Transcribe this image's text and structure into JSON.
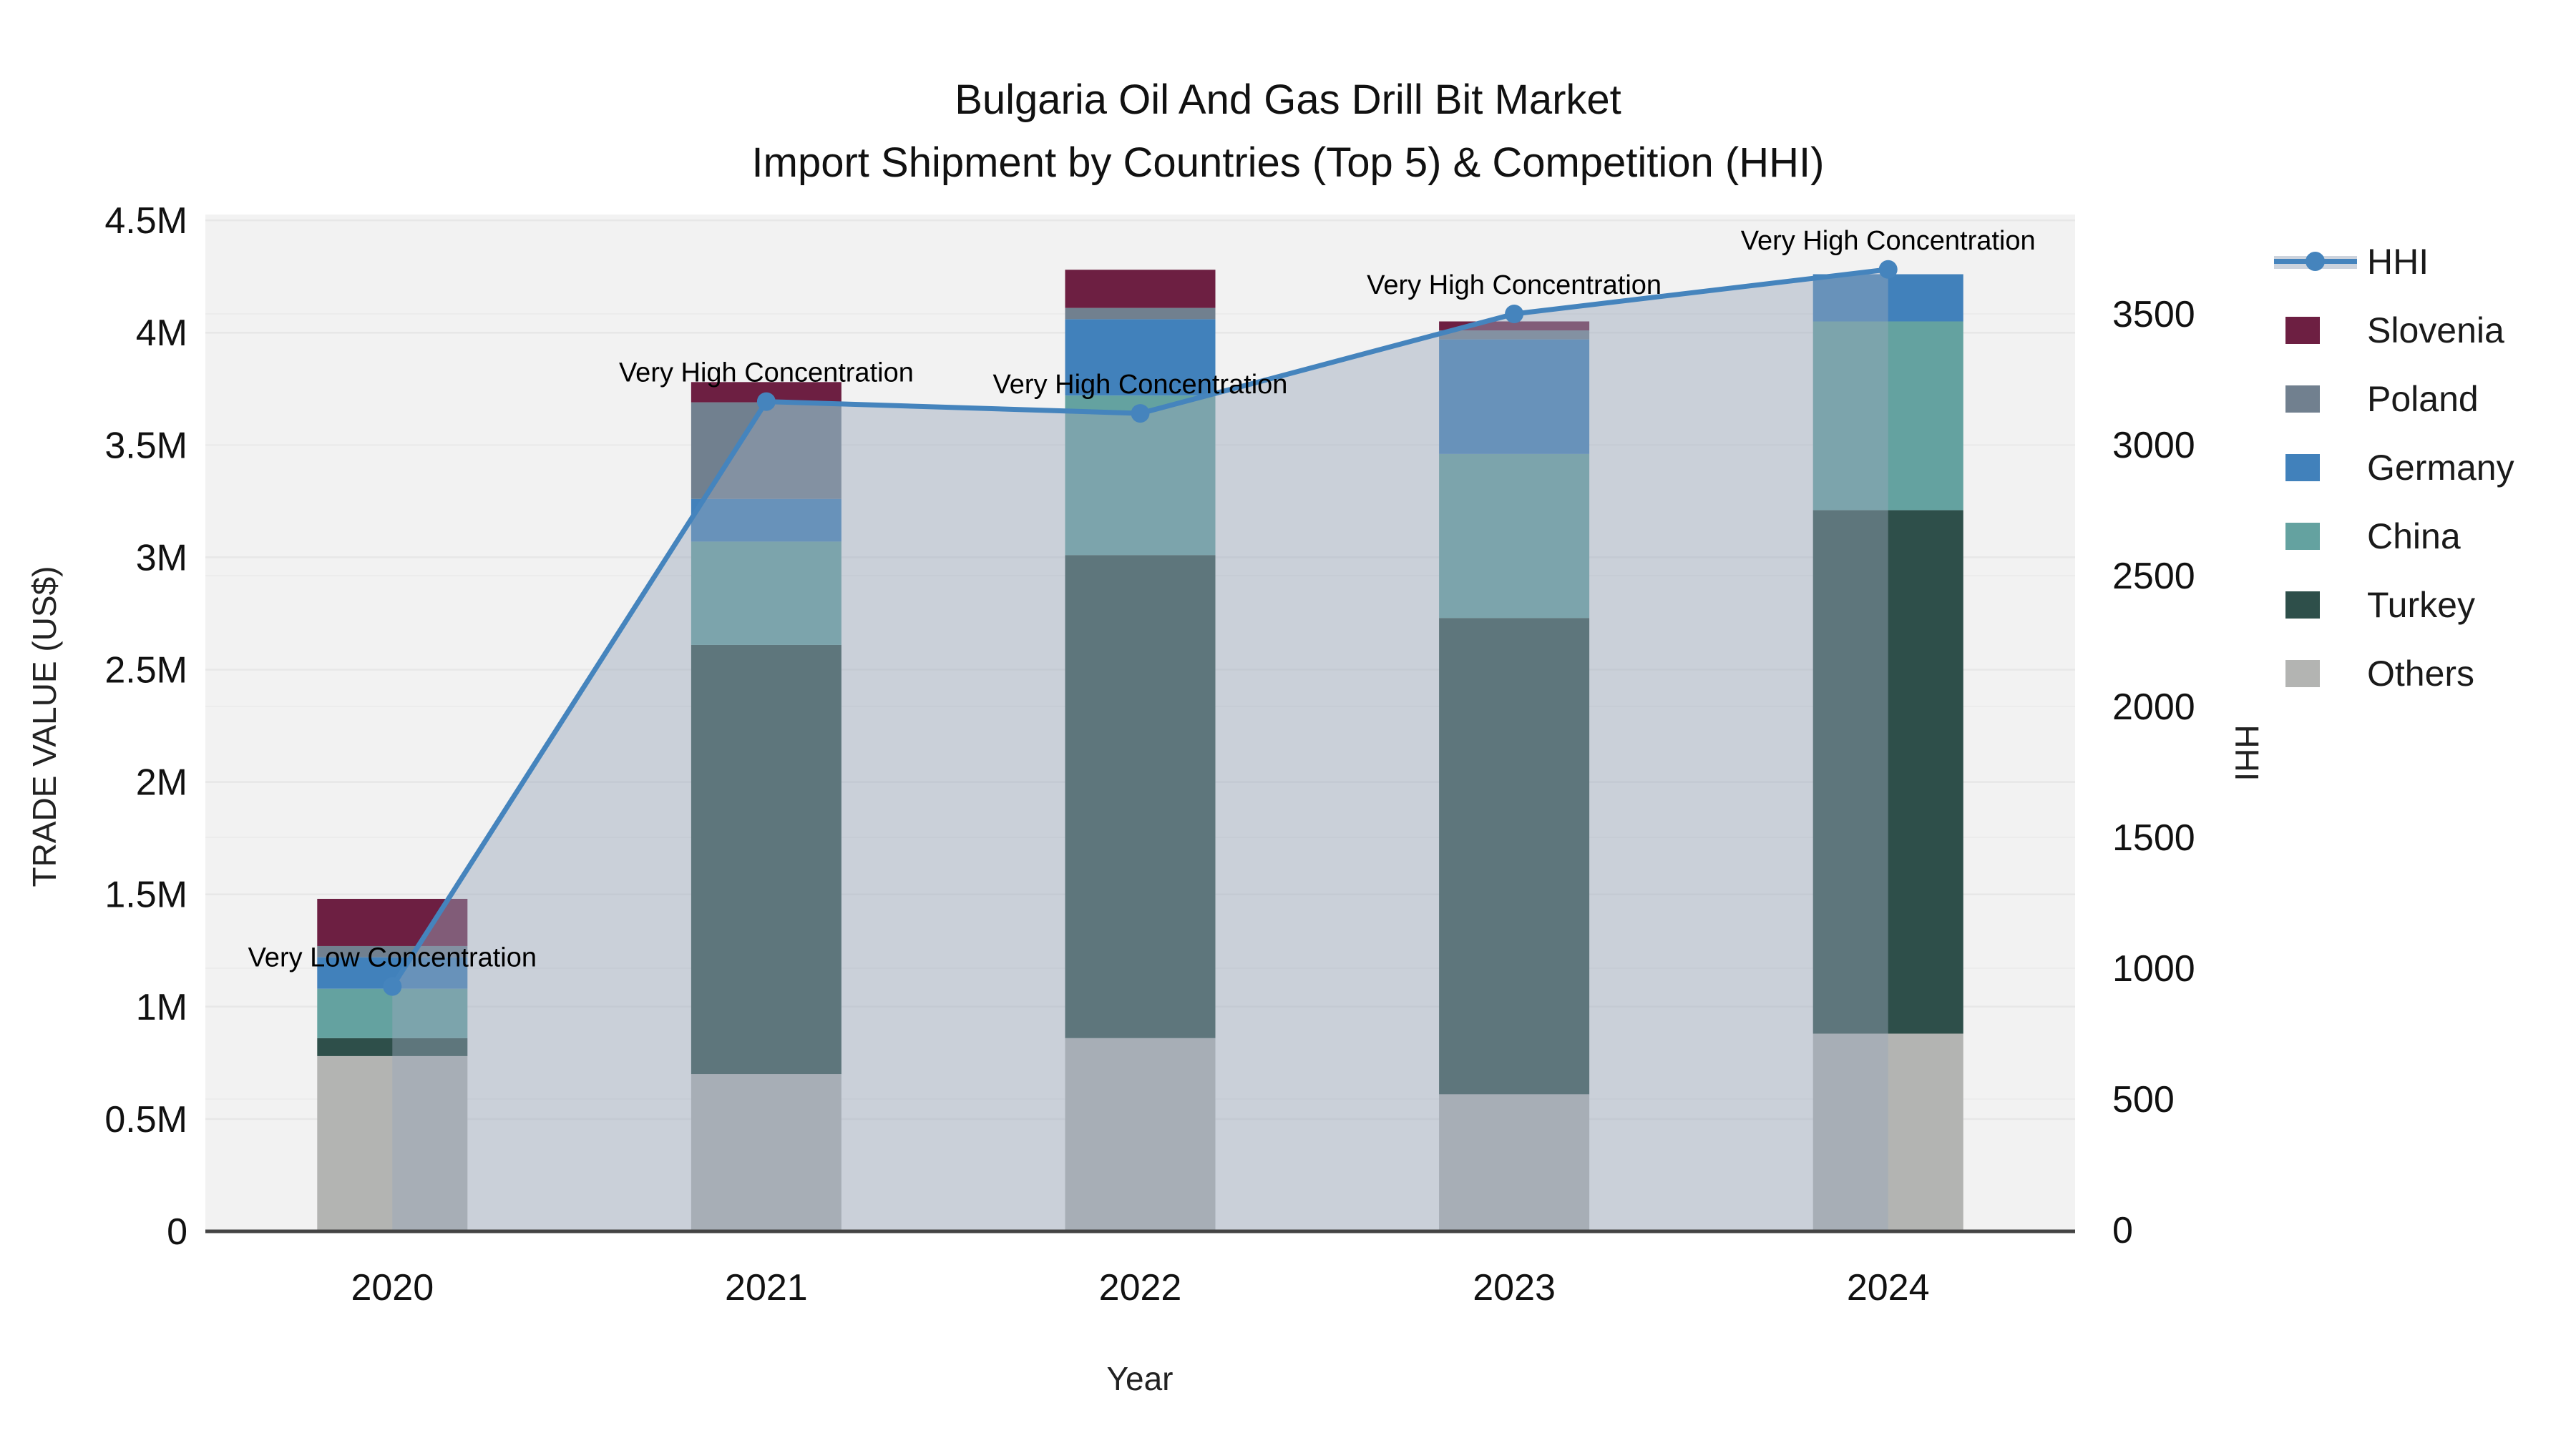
{
  "title": {
    "line1": "Bulgaria Oil And Gas Drill Bit Market",
    "line2": "Import Shipment by Countries (Top 5) & Competition (HHI)"
  },
  "axes": {
    "x_title": "Year",
    "y_left_title": "TRADE VALUE (US$)",
    "y_right_title": "HHI",
    "y_left_ticks": [
      "0",
      "0.5M",
      "1M",
      "1.5M",
      "2M",
      "2.5M",
      "3M",
      "3.5M",
      "4M",
      "4.5M"
    ],
    "y_right_ticks": [
      "0",
      "500",
      "1000",
      "1500",
      "2000",
      "2500",
      "3000",
      "3500"
    ],
    "x_ticks": [
      "2020",
      "2021",
      "2022",
      "2023",
      "2024"
    ]
  },
  "legend": {
    "items": [
      {
        "label": "HHI",
        "kind": "line",
        "color": "#4584bd"
      },
      {
        "label": "Slovenia",
        "kind": "swatch",
        "color": "#6d1f42"
      },
      {
        "label": "Poland",
        "kind": "swatch",
        "color": "#71808f"
      },
      {
        "label": "Germany",
        "kind": "swatch",
        "color": "#4181bb"
      },
      {
        "label": "China",
        "kind": "swatch",
        "color": "#64a2a0"
      },
      {
        "label": "Turkey",
        "kind": "swatch",
        "color": "#2e4f4a"
      },
      {
        "label": "Others",
        "kind": "swatch",
        "color": "#b3b4b2"
      }
    ]
  },
  "chart_data": {
    "type": "combo",
    "subtypes": [
      "stacked-bar",
      "area",
      "line"
    ],
    "title": "Bulgaria Oil And Gas Drill Bit Market — Import Shipment by Countries (Top 5) & Competition (HHI)",
    "x": [
      2020,
      2021,
      2022,
      2023,
      2024
    ],
    "xlabel": "Year",
    "ylabel_left": "TRADE VALUE (US$)",
    "ylabel_right": "HHI",
    "ylim_left_musd": [
      0,
      4.5
    ],
    "ylim_right_hhi": [
      0,
      3880
    ],
    "grid": "horizontal-both-axes",
    "bar_unit": "US$ millions",
    "stack_order_bottom_to_top": [
      "Others",
      "Turkey",
      "China",
      "Germany",
      "Poland",
      "Slovenia"
    ],
    "series": [
      {
        "name": "Slovenia",
        "color": "#6d1f42",
        "values": [
          0.21,
          0.09,
          0.17,
          0.04,
          0
        ]
      },
      {
        "name": "Poland",
        "color": "#71808f",
        "values": [
          0.05,
          0.43,
          0.05,
          0.04,
          0
        ]
      },
      {
        "name": "Germany",
        "color": "#4181bb",
        "values": [
          0.14,
          0.19,
          0.34,
          0.51,
          0.21
        ]
      },
      {
        "name": "China",
        "color": "#64a2a0",
        "values": [
          0.22,
          0.46,
          0.71,
          0.73,
          0.84
        ]
      },
      {
        "name": "Turkey",
        "color": "#2e4f4a",
        "values": [
          0.08,
          1.91,
          2.15,
          2.12,
          2.33
        ]
      },
      {
        "name": "Others",
        "color": "#b3b4b2",
        "values": [
          0.78,
          0.7,
          0.86,
          0.61,
          0.88
        ]
      }
    ],
    "bar_totals_musd": [
      1.48,
      3.78,
      4.28,
      4.05,
      4.26
    ],
    "hhi_line": {
      "name": "HHI",
      "color": "#4584bd",
      "area_fill_color": "rgba(152,166,186,0.45)",
      "values": [
        930,
        3165,
        3120,
        3500,
        3670
      ]
    },
    "annotations": [
      {
        "x": 2020,
        "text": "Very Low Concentration"
      },
      {
        "x": 2021,
        "text": "Very High Concentration"
      },
      {
        "x": 2022,
        "text": "Very High Concentration"
      },
      {
        "x": 2023,
        "text": "Very High Concentration"
      },
      {
        "x": 2024,
        "text": "Very High Concentration"
      }
    ]
  }
}
